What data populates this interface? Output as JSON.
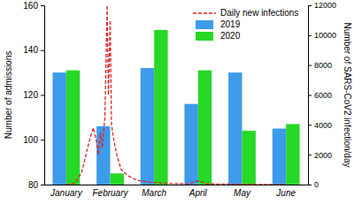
{
  "chart_data": {
    "type": "bar",
    "categories": [
      "January",
      "February",
      "March",
      "April",
      "May",
      "June"
    ],
    "ylabel": "Number of admissions",
    "y2label": "Number of SARS-CoV2 infection/day",
    "ylim": [
      80,
      160
    ],
    "yticks": [
      80,
      100,
      120,
      140,
      160
    ],
    "y2lim": [
      0,
      12000
    ],
    "y2ticks": [
      0,
      2000,
      4000,
      6000,
      8000,
      10000,
      12000
    ],
    "xlim": [
      -0.5,
      5.5
    ],
    "legend": "upper right",
    "grid": false,
    "series": [
      {
        "name": "Daily new infections",
        "type": "line",
        "axis": "y2",
        "color": "#e02424",
        "line_style": "dashed",
        "x": [
          0,
          0.2,
          0.35,
          0.45,
          0.55,
          0.62,
          0.68,
          0.73,
          0.78,
          0.82,
          0.88,
          0.93,
          0.96,
          1.0,
          1.03,
          1.08,
          1.15,
          1.25,
          1.4,
          1.6,
          1.9,
          2.3,
          2.8,
          3.0,
          3.2,
          4.0,
          5.0
        ],
        "values": [
          0,
          100,
          800,
          2000,
          3200,
          3800,
          3000,
          2000,
          3500,
          2500,
          4500,
          12000,
          6000,
          11000,
          4000,
          3000,
          2000,
          1000,
          600,
          300,
          150,
          80,
          50,
          250,
          50,
          20,
          0
        ]
      },
      {
        "name": "2019",
        "type": "bar",
        "color": "#3d9be9",
        "values": [
          130,
          106,
          132,
          116,
          130,
          105
        ]
      },
      {
        "name": "2020",
        "type": "bar",
        "color": "#27d827",
        "values": [
          131,
          85,
          149,
          131,
          104,
          107
        ]
      }
    ]
  }
}
